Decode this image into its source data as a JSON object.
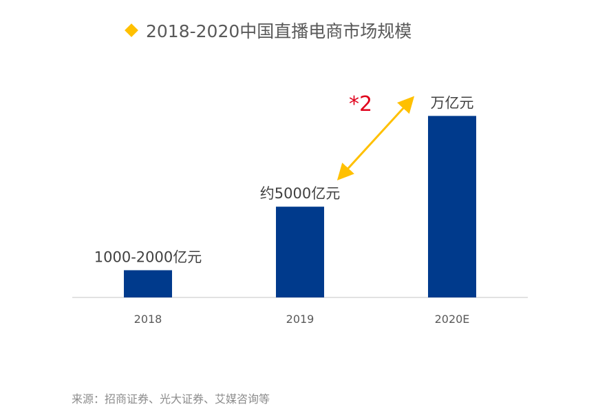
{
  "title": "2018-2020中国直播电商市场规模",
  "source": "来源：招商证券、光大证券、艾媒咨询等",
  "colors": {
    "bar": "#003A8C",
    "arrow": "#FFC000",
    "multiplier": "#E0001B",
    "axis": "#d9d9d9",
    "title_icon": "#FFC000"
  },
  "icons": {
    "title_marker": "diamond"
  },
  "chart_data": {
    "type": "bar",
    "title": "2018-2020中国直播电商市场规模",
    "categories": [
      "2018",
      "2019",
      "2020E"
    ],
    "values": [
      1500,
      5000,
      10000
    ],
    "data_labels": [
      "1000-2000亿元",
      "约5000亿元",
      "万亿元"
    ],
    "units": "亿元",
    "ylim": [
      0,
      11000
    ],
    "grid": false,
    "legend": "none",
    "annotations": [
      {
        "text": "*2",
        "type": "growth-arrow",
        "from": "2019",
        "to": "2020E"
      }
    ]
  }
}
